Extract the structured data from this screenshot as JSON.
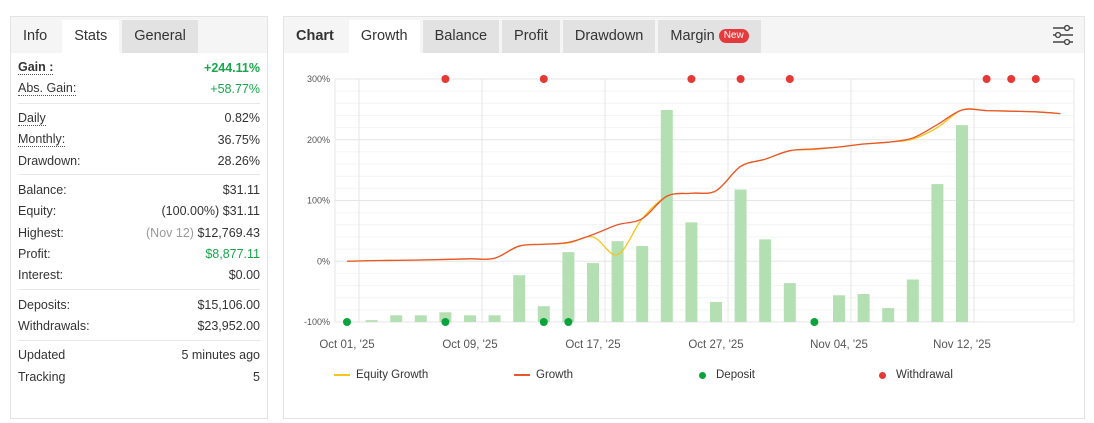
{
  "left": {
    "tabs": [
      {
        "label": "Info"
      },
      {
        "label": "Stats"
      },
      {
        "label": "General"
      }
    ],
    "gain": {
      "label": "Gain :",
      "value": "+244.11%"
    },
    "abs_gain": {
      "label": "Abs. Gain:",
      "value": "+58.77%"
    },
    "daily": {
      "label": "Daily",
      "value": "0.82%"
    },
    "monthly": {
      "label": "Monthly:",
      "value": "36.75%"
    },
    "drawdown": {
      "label": "Drawdown:",
      "value": "28.26%"
    },
    "balance": {
      "label": "Balance:",
      "value": "$31.11"
    },
    "equity": {
      "label": "Equity:",
      "pct": "(100.00%)",
      "value": "$31.11"
    },
    "highest": {
      "label": "Highest:",
      "date": "(Nov 12)",
      "value": "$12,769.43"
    },
    "profit": {
      "label": "Profit:",
      "value": "$8,877.11"
    },
    "interest": {
      "label": "Interest:",
      "value": "$0.00"
    },
    "deposits": {
      "label": "Deposits:",
      "value": "$15,106.00"
    },
    "withdrawals": {
      "label": "Withdrawals:",
      "value": "$23,952.00"
    },
    "updated": {
      "label": "Updated",
      "value": "5 minutes ago"
    },
    "tracking": {
      "label": "Tracking",
      "value": "5"
    }
  },
  "right": {
    "tabs": [
      {
        "label": "Chart"
      },
      {
        "label": "Growth"
      },
      {
        "label": "Balance"
      },
      {
        "label": "Profit"
      },
      {
        "label": "Drawdown"
      },
      {
        "label": "Margin",
        "badge": "New"
      }
    ],
    "settings_icon": "sliders-icon"
  },
  "colors": {
    "growth": "#e8552f",
    "equity": "#f5c518",
    "deposit": "#0aa33c",
    "withdrawal": "#e53935",
    "bar": "#b3dfb3"
  },
  "chart_data": {
    "type": "bar+line",
    "ylim": [
      -100,
      300
    ],
    "yticks": [
      "300%",
      "200%",
      "100%",
      "0%",
      "-100%"
    ],
    "yticks_values": [
      300,
      200,
      100,
      0,
      -100
    ],
    "xlabels": [
      {
        "i": 0,
        "label": "Oct 01, '25"
      },
      {
        "i": 5,
        "label": "Oct 09, '25"
      },
      {
        "i": 10,
        "label": "Oct 17, '25"
      },
      {
        "i": 15,
        "label": "Oct 27, '25"
      },
      {
        "i": 20,
        "label": "Nov 04, '25"
      },
      {
        "i": 25,
        "label": "Nov 12, '25"
      }
    ],
    "bars": [
      null,
      -97,
      -89,
      -89,
      -84,
      -89,
      -89,
      -23,
      -74,
      15,
      -3,
      33,
      25,
      249,
      64,
      -67,
      118,
      36,
      -36,
      null,
      -56,
      -54,
      -77,
      -30,
      127,
      224,
      null,
      null,
      null,
      null
    ],
    "series": [
      {
        "name": "Equity Growth",
        "values": [
          0,
          1,
          1.5,
          2,
          3,
          4,
          5,
          25,
          28,
          30,
          40,
          11,
          70,
          107,
          112,
          116,
          156,
          168,
          182,
          184,
          188,
          193,
          196,
          201,
          220,
          249,
          248,
          247,
          246,
          243
        ]
      },
      {
        "name": "Growth",
        "values": [
          0,
          1,
          1.5,
          2,
          3,
          4,
          5,
          25,
          28,
          31,
          44,
          60,
          70,
          107,
          112,
          116,
          156,
          168,
          182,
          185,
          188,
          193,
          196,
          203,
          225,
          249,
          248,
          247,
          246,
          243
        ]
      }
    ],
    "deposits": [
      0,
      4,
      8,
      9,
      19
    ],
    "withdrawals": [
      4,
      8,
      14,
      16,
      18,
      26,
      27,
      28
    ],
    "legend": [
      {
        "label": "Equity Growth"
      },
      {
        "label": "Growth"
      },
      {
        "label": "Deposit"
      },
      {
        "label": "Withdrawal"
      }
    ],
    "legend_position": "bottom"
  }
}
